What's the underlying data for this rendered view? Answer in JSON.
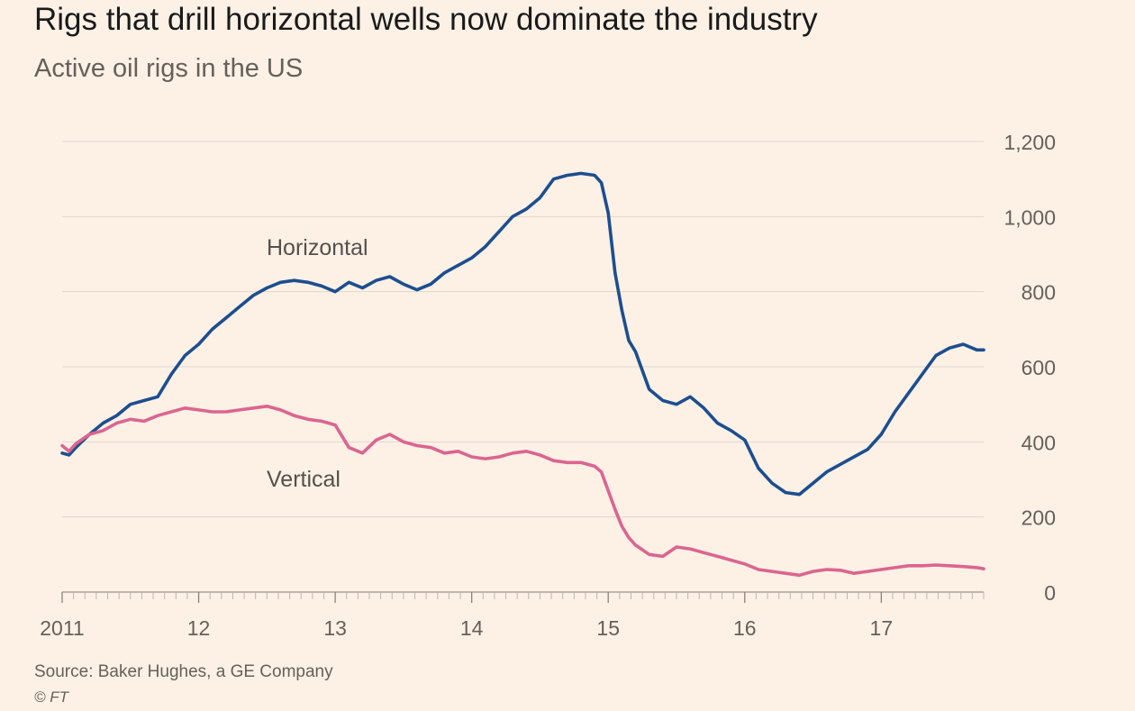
{
  "title": "Rigs that drill horizontal wells now dominate the industry",
  "subtitle": "Active oil rigs in the US",
  "source": "Source: Baker Hughes, a GE Company",
  "copyright": "© FT",
  "colors": {
    "background": "#fdf1e6",
    "horizontal": "#1d4e8f",
    "vertical": "#db6590",
    "grid": "#e0d6cc",
    "axis_text": "#66605a"
  },
  "chart_data": {
    "type": "line",
    "title": "Rigs that drill horizontal wells now dominate the industry",
    "subtitle": "Active oil rigs in the US",
    "xlabel": "",
    "ylabel": "",
    "xlim": [
      2011.0,
      2017.75
    ],
    "ylim": [
      0,
      1200
    ],
    "y_ticks": [
      0,
      200,
      400,
      600,
      800,
      1000,
      1200
    ],
    "y_tick_labels": [
      "0",
      "200",
      "400",
      "600",
      "800",
      "1,000",
      "1,200"
    ],
    "y_axis_position": "right",
    "x_ticks": [
      2011,
      2012,
      2013,
      2014,
      2015,
      2016,
      2017
    ],
    "x_tick_labels": [
      "2011",
      "12",
      "13",
      "14",
      "15",
      "16",
      "17"
    ],
    "grid": true,
    "series": [
      {
        "name": "Horizontal",
        "color": "#1d4e8f",
        "x": [
          2011.0,
          2011.05,
          2011.1,
          2011.2,
          2011.3,
          2011.4,
          2011.5,
          2011.6,
          2011.7,
          2011.8,
          2011.9,
          2012.0,
          2012.1,
          2012.2,
          2012.3,
          2012.4,
          2012.5,
          2012.6,
          2012.7,
          2012.8,
          2012.9,
          2013.0,
          2013.1,
          2013.2,
          2013.3,
          2013.4,
          2013.5,
          2013.6,
          2013.7,
          2013.8,
          2013.9,
          2014.0,
          2014.1,
          2014.2,
          2014.3,
          2014.4,
          2014.5,
          2014.6,
          2014.7,
          2014.8,
          2014.9,
          2014.95,
          2015.0,
          2015.05,
          2015.1,
          2015.15,
          2015.2,
          2015.3,
          2015.4,
          2015.5,
          2015.6,
          2015.7,
          2015.8,
          2015.9,
          2016.0,
          2016.1,
          2016.2,
          2016.3,
          2016.4,
          2016.5,
          2016.6,
          2016.7,
          2016.8,
          2016.9,
          2017.0,
          2017.1,
          2017.2,
          2017.3,
          2017.4,
          2017.5,
          2017.6,
          2017.7,
          2017.75
        ],
        "values": [
          370,
          365,
          385,
          420,
          450,
          470,
          500,
          510,
          520,
          580,
          630,
          660,
          700,
          730,
          760,
          790,
          810,
          825,
          830,
          825,
          815,
          800,
          825,
          810,
          830,
          840,
          820,
          805,
          820,
          850,
          870,
          890,
          920,
          960,
          1000,
          1020,
          1050,
          1100,
          1110,
          1115,
          1110,
          1090,
          1010,
          850,
          750,
          670,
          640,
          540,
          510,
          500,
          520,
          490,
          450,
          430,
          405,
          330,
          290,
          265,
          260,
          290,
          320,
          340,
          360,
          380,
          420,
          480,
          530,
          580,
          630,
          650,
          660,
          645,
          645
        ]
      },
      {
        "name": "Vertical",
        "color": "#db6590",
        "x": [
          2011.0,
          2011.05,
          2011.1,
          2011.2,
          2011.3,
          2011.4,
          2011.5,
          2011.6,
          2011.7,
          2011.8,
          2011.9,
          2012.0,
          2012.1,
          2012.2,
          2012.3,
          2012.4,
          2012.5,
          2012.6,
          2012.7,
          2012.8,
          2012.9,
          2013.0,
          2013.1,
          2013.2,
          2013.3,
          2013.4,
          2013.5,
          2013.6,
          2013.7,
          2013.8,
          2013.9,
          2014.0,
          2014.1,
          2014.2,
          2014.3,
          2014.4,
          2014.5,
          2014.6,
          2014.7,
          2014.8,
          2014.9,
          2014.95,
          2015.0,
          2015.05,
          2015.1,
          2015.15,
          2015.2,
          2015.3,
          2015.4,
          2015.5,
          2015.6,
          2015.7,
          2015.8,
          2015.9,
          2016.0,
          2016.1,
          2016.2,
          2016.3,
          2016.4,
          2016.5,
          2016.6,
          2016.7,
          2016.8,
          2016.9,
          2017.0,
          2017.1,
          2017.2,
          2017.3,
          2017.4,
          2017.5,
          2017.6,
          2017.7,
          2017.75
        ],
        "values": [
          390,
          375,
          395,
          420,
          430,
          450,
          460,
          455,
          470,
          480,
          490,
          485,
          480,
          480,
          485,
          490,
          495,
          485,
          470,
          460,
          455,
          445,
          385,
          370,
          405,
          420,
          400,
          390,
          385,
          370,
          375,
          360,
          355,
          360,
          370,
          375,
          365,
          350,
          345,
          345,
          335,
          320,
          270,
          220,
          175,
          145,
          125,
          100,
          95,
          120,
          115,
          105,
          95,
          85,
          75,
          60,
          55,
          50,
          45,
          55,
          60,
          58,
          50,
          55,
          60,
          65,
          70,
          70,
          72,
          70,
          68,
          65,
          62
        ]
      }
    ],
    "annotations": [
      {
        "text": "Horizontal",
        "series": "Horizontal"
      },
      {
        "text": "Vertical",
        "series": "Vertical"
      }
    ]
  }
}
